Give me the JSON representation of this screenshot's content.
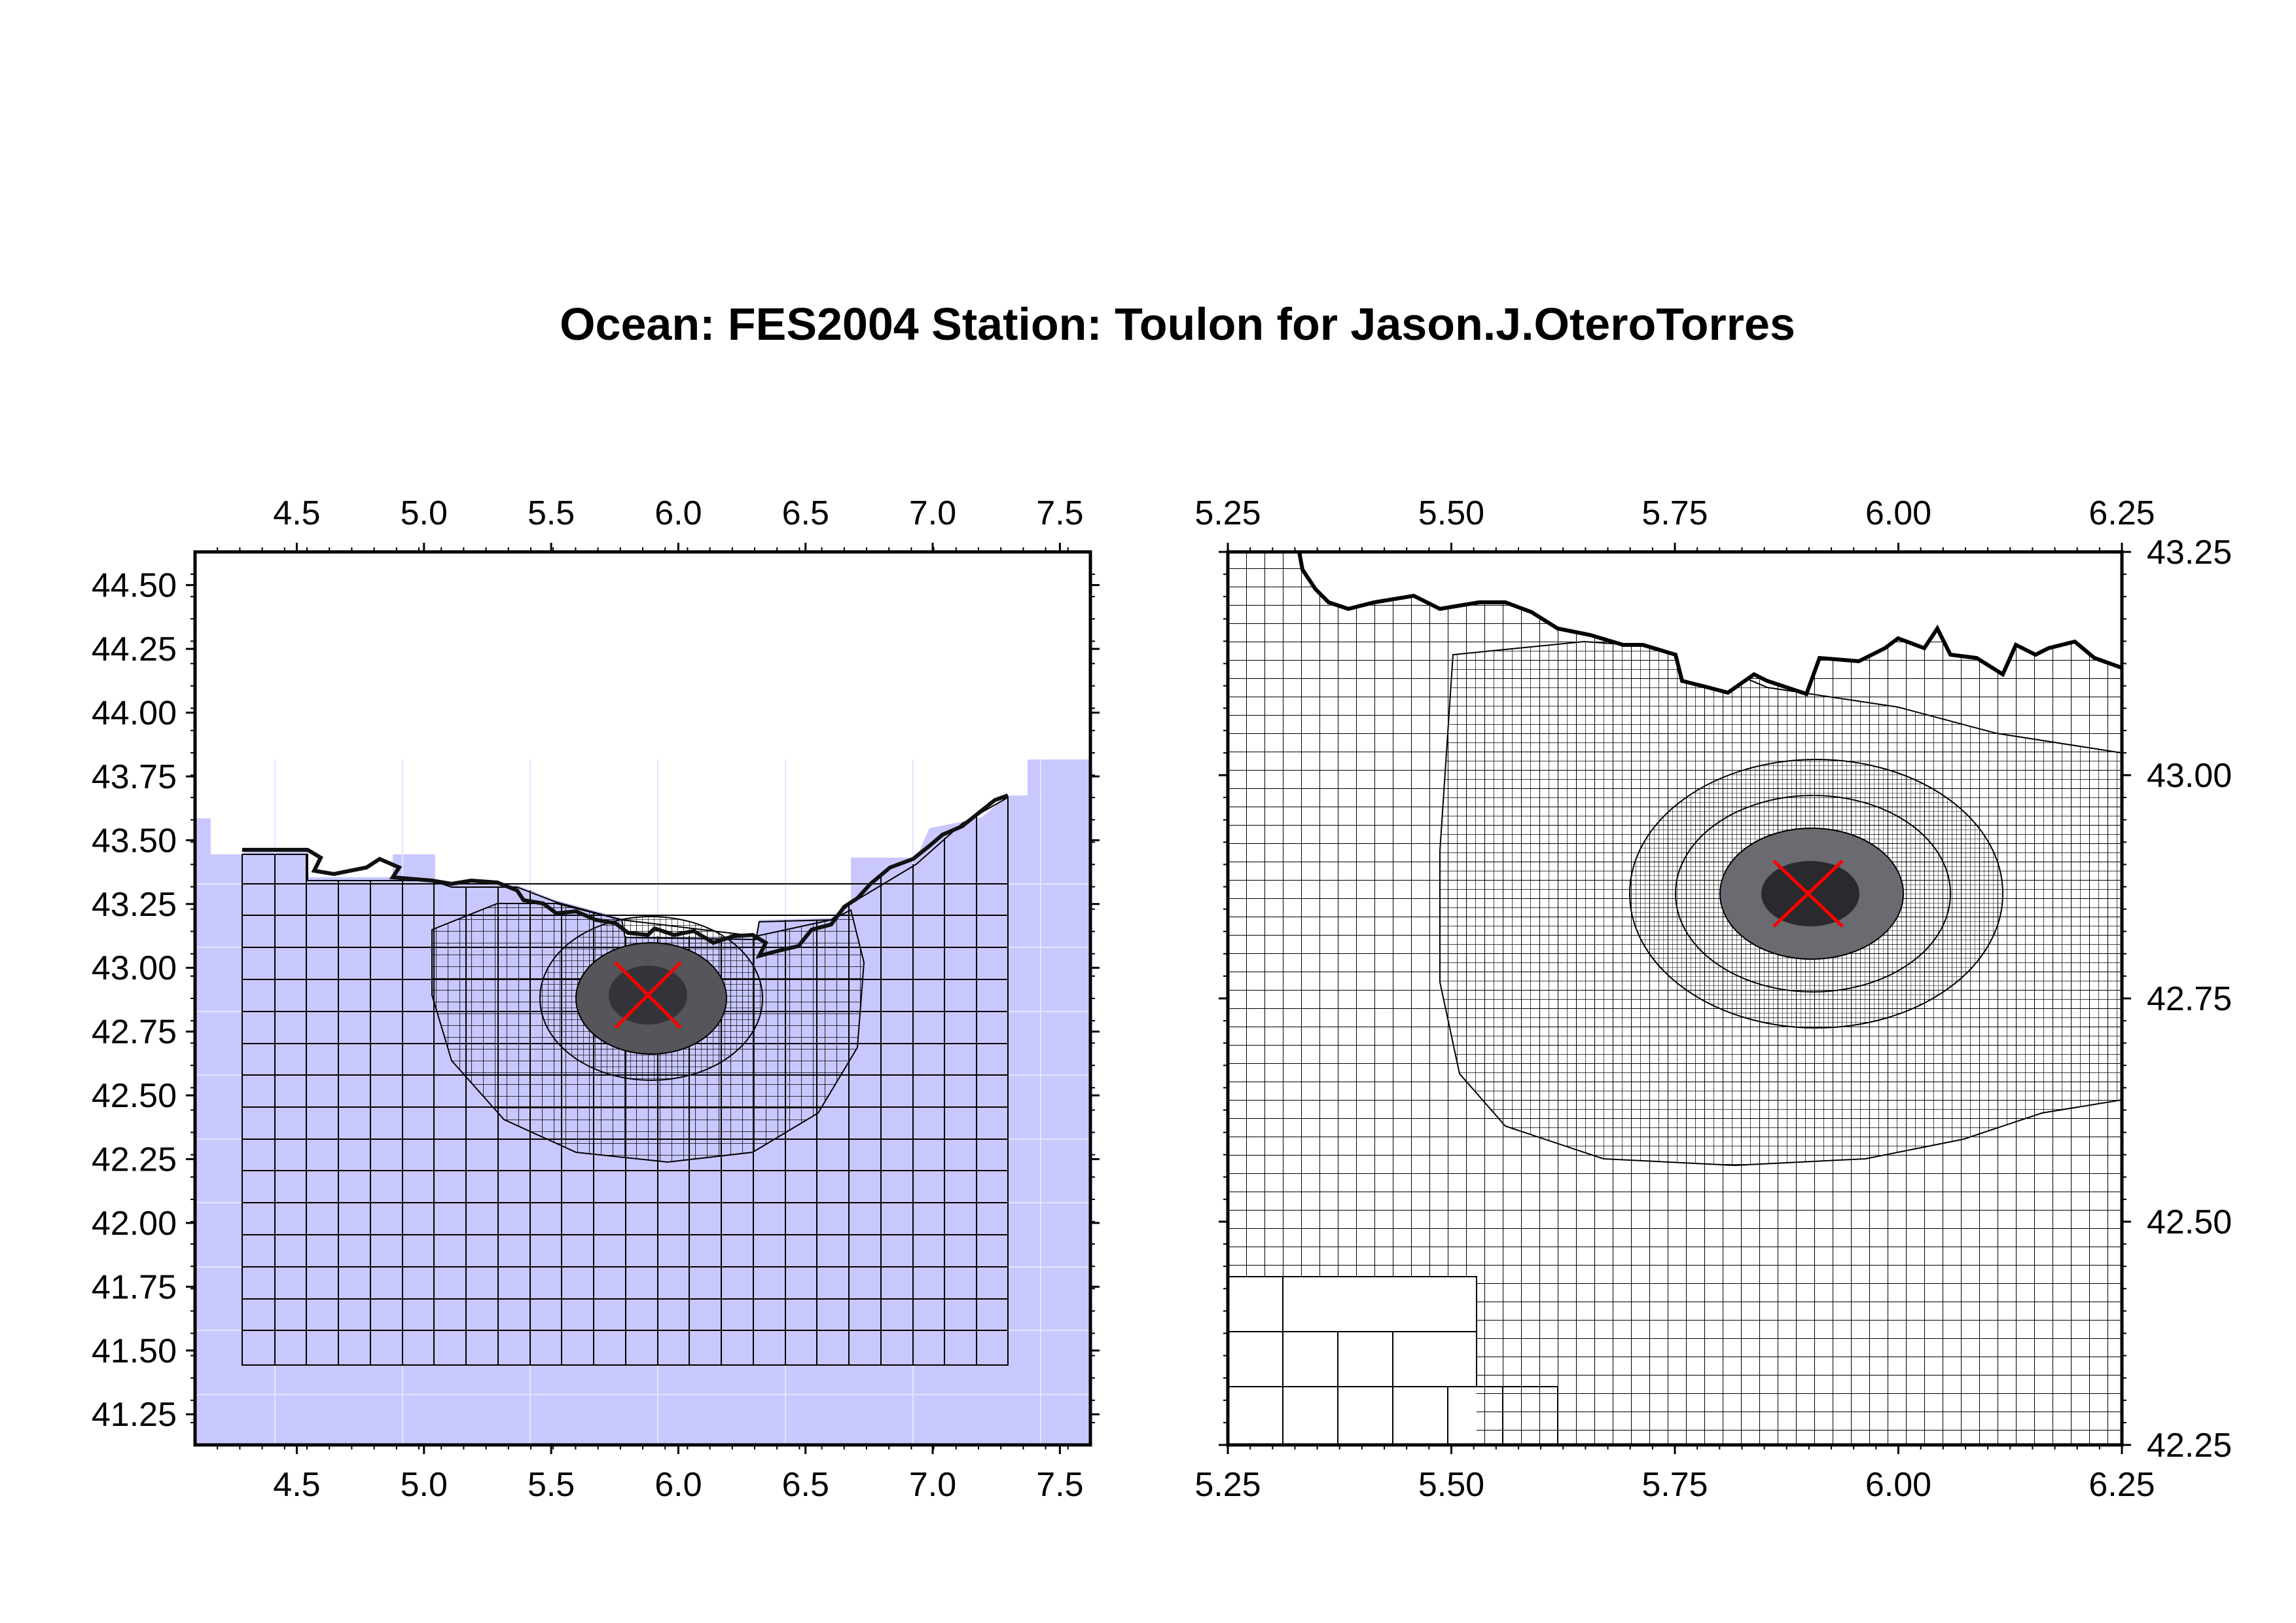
{
  "title": "Ocean: FES2004  Station: Toulon  for Jason.J.OteroTorres",
  "colors": {
    "model_domain": "#c8c8ff",
    "grid_line": "#000000",
    "refined_core": "#333338",
    "station_marker": "#ff0000",
    "frame": "#000000"
  },
  "left_map": {
    "name": "regional-mesh-map",
    "lon_range": [
      4.1,
      7.62
    ],
    "lat_range": [
      41.13,
      44.63
    ],
    "x_ticks": [
      "4.5",
      "5.0",
      "5.5",
      "6.0",
      "6.5",
      "7.0",
      "7.5"
    ],
    "x_tick_values": [
      4.5,
      5.0,
      5.5,
      6.0,
      6.5,
      7.0,
      7.5
    ],
    "y_ticks": [
      "44.50",
      "44.25",
      "44.00",
      "43.75",
      "43.50",
      "43.25",
      "43.00",
      "42.75",
      "42.50",
      "42.25",
      "42.00",
      "41.75",
      "41.50",
      "41.25"
    ],
    "y_tick_values": [
      44.5,
      44.25,
      44.0,
      43.75,
      43.5,
      43.25,
      43.0,
      42.75,
      42.5,
      42.25,
      42.0,
      41.75,
      41.5,
      41.25
    ],
    "station": {
      "lon": 5.92,
      "lat": 42.86
    }
  },
  "right_map": {
    "name": "zoomed-mesh-map",
    "lon_range": [
      5.25,
      6.25
    ],
    "lat_range": [
      42.25,
      43.25
    ],
    "x_ticks": [
      "5.25",
      "5.50",
      "5.75",
      "6.00",
      "6.25"
    ],
    "x_tick_values": [
      5.25,
      5.5,
      5.75,
      6.0,
      6.25
    ],
    "y_ticks": [
      "43.25",
      "43.00",
      "42.75",
      "42.50",
      "42.25"
    ],
    "y_tick_values": [
      43.25,
      43.0,
      42.75,
      42.5,
      42.25
    ],
    "station": {
      "lon": 5.91,
      "lat": 42.86
    }
  }
}
